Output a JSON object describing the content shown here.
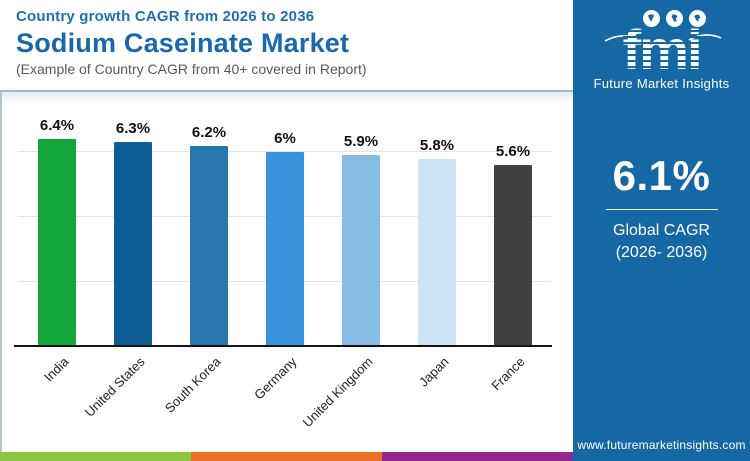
{
  "header": {
    "kicker": "Country growth CAGR from 2026 to 2036",
    "title": "Sodium Caseinate Market",
    "note": "(Example of Country CAGR from 40+ covered in Report)"
  },
  "chart_data": {
    "type": "bar",
    "title": "Country growth CAGR from 2026 to 2036",
    "categories": [
      "India",
      "United States",
      "South Korea",
      "Germany",
      "United Kingdom",
      "Japan",
      "France"
    ],
    "values": [
      6.4,
      6.3,
      6.2,
      6.0,
      5.9,
      5.8,
      5.6
    ],
    "value_labels": [
      "6.4%",
      "6.3%",
      "6.2%",
      "6%",
      "5.9%",
      "5.8%",
      "5.6%"
    ],
    "bar_colors": [
      "#14a53b",
      "#0e5c94",
      "#2a77ae",
      "#3b92dc",
      "#86bce4",
      "#cbe3f4",
      "#414042"
    ],
    "xlabel": "",
    "ylabel": "",
    "ylim": [
      0,
      6.6
    ],
    "gridlines_pct": [
      2,
      4,
      6
    ],
    "grid": true,
    "legend": false,
    "grid_color": "#e4e4e4",
    "axis_color": "#141414"
  },
  "sidebar": {
    "background": "#1668a5",
    "logo_text": "fmi",
    "brand_name": "Future Market Insights",
    "stat_value": "6.1%",
    "stat_label_line1": "Global CAGR",
    "stat_label_line2": "(2026- 2036)",
    "website": "www.futuremarketinsights.com"
  },
  "footer": {
    "strip_colors": [
      "#8dc63f",
      "#ea7125",
      "#93278f"
    ]
  }
}
